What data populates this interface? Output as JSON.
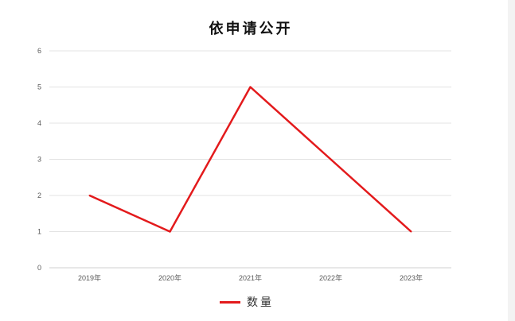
{
  "chart_data": {
    "type": "line",
    "title": "依申请公开",
    "categories": [
      "2019年",
      "2020年",
      "2021年",
      "2022年",
      "2023年"
    ],
    "series": [
      {
        "name": "数量",
        "values": [
          2,
          1,
          5,
          3,
          1
        ],
        "color": "#e31a1c"
      }
    ],
    "ylim": [
      0,
      6
    ],
    "yticks": [
      "0",
      "1",
      "2",
      "3",
      "4",
      "5",
      "6"
    ],
    "grid": true,
    "legend": "bottom",
    "xlabel": "",
    "ylabel": ""
  }
}
